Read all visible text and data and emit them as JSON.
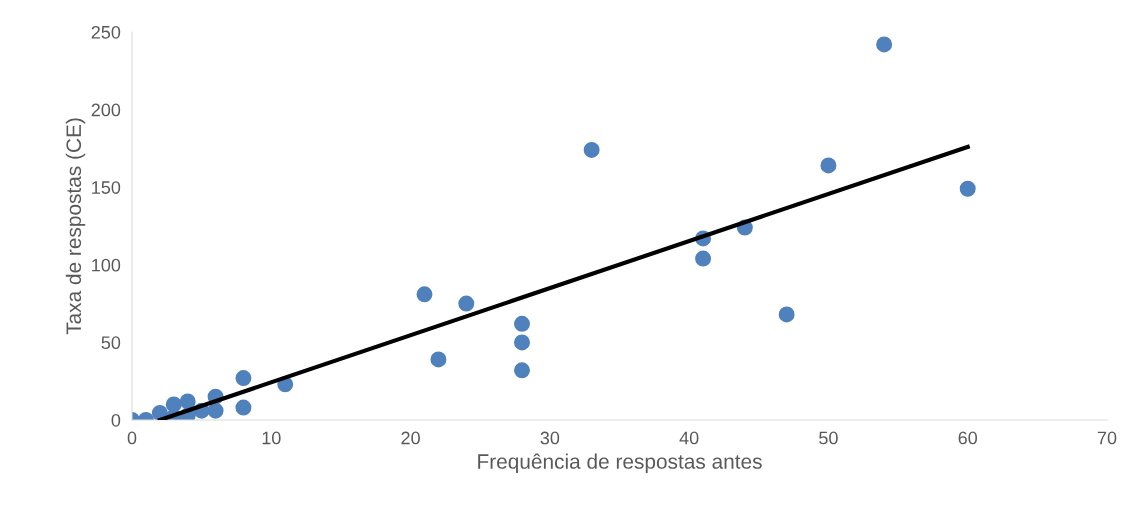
{
  "chart_data": {
    "type": "scatter",
    "xlabel": "Frequência de respostas antes",
    "ylabel": "Taxa de respostas (CE)",
    "xlim": [
      0,
      70
    ],
    "xticks": [
      0,
      10,
      20,
      30,
      40,
      50,
      60,
      70
    ],
    "ylim": [
      0,
      250
    ],
    "yticks": [
      0,
      50,
      100,
      150,
      200,
      250
    ],
    "grid": false,
    "legend": false,
    "marker": "circle",
    "series": [
      {
        "color": "#4f81bd",
        "x": [
          0,
          1,
          2,
          3,
          3,
          4,
          4,
          5,
          6,
          6,
          8,
          8,
          11,
          21,
          22,
          24,
          28,
          28,
          28,
          33,
          41,
          41,
          44,
          47,
          50,
          54,
          60
        ],
        "values": [
          0,
          0,
          4.5,
          10,
          2,
          12,
          3,
          6,
          15,
          6,
          27,
          8,
          23,
          81,
          39,
          75,
          62,
          50,
          32,
          174,
          117,
          104,
          124,
          68,
          164,
          242,
          149
        ]
      },
      {
        "type": "line",
        "color": "#000000",
        "x": [
          2,
          60
        ],
        "values": [
          0,
          176
        ],
        "marker": "none",
        "line_style": "solid"
      }
    ]
  }
}
